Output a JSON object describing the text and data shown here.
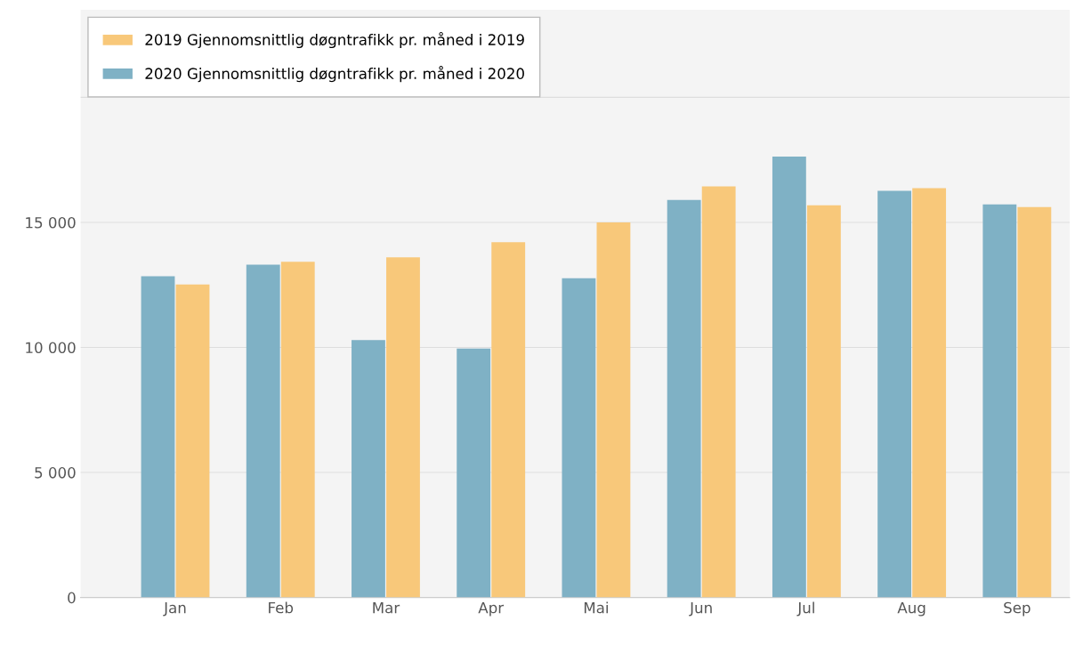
{
  "chart_data": {
    "type": "bar",
    "categories": [
      "Jan",
      "Feb",
      "Mar",
      "Apr",
      "Mai",
      "Jun",
      "Jul",
      "Aug",
      "Sep"
    ],
    "series": [
      {
        "name": "2020 Gjennomsnittlig døgntrafikk pr. måned i 2020",
        "color": "#7fb1c5",
        "values": [
          12850,
          13310,
          10290,
          9960,
          12770,
          15900,
          17630,
          16260,
          15720
        ]
      },
      {
        "name": "2019 Gjennomsnittlig døgntrafikk pr. måned i 2019",
        "color": "#f8c87a",
        "values": [
          12520,
          13420,
          13600,
          14210,
          15000,
          16440,
          15680,
          16370,
          15610
        ]
      }
    ],
    "ylim": [
      0,
      23500
    ],
    "yticks": [
      {
        "value": 0,
        "label": "0"
      },
      {
        "value": 5000,
        "label": "5 000"
      },
      {
        "value": 10000,
        "label": "10 000"
      },
      {
        "value": 15000,
        "label": "15 000"
      },
      {
        "value": 20000,
        "label": null
      }
    ],
    "grid": "y",
    "legend": "top left"
  }
}
